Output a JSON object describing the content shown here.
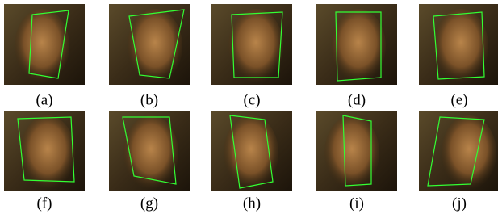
{
  "figure": {
    "panels": [
      {
        "label": "(a)"
      },
      {
        "label": "(b)"
      },
      {
        "label": "(c)"
      },
      {
        "label": "(d)"
      },
      {
        "label": "(e)"
      },
      {
        "label": "(f)"
      },
      {
        "label": "(g)"
      },
      {
        "label": "(h)"
      },
      {
        "label": "(i)"
      },
      {
        "label": "(j)"
      }
    ]
  }
}
